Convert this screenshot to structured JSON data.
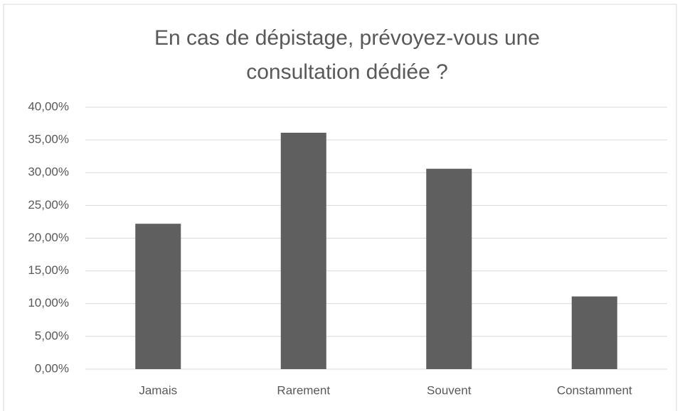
{
  "chart_data": {
    "type": "bar",
    "title": "En cas de dépistage, prévoyez-vous une consultation dédiée ?",
    "categories": [
      "Jamais",
      "Rarement",
      "Souvent",
      "Constamment"
    ],
    "values": [
      22.2,
      36.1,
      30.6,
      11.1
    ],
    "color": "#5f5f5f",
    "ylim": [
      0,
      40
    ],
    "yticks": [
      {
        "value": 0,
        "label": "0,00%"
      },
      {
        "value": 5,
        "label": "5,00%"
      },
      {
        "value": 10,
        "label": "10,00%"
      },
      {
        "value": 15,
        "label": "15,00%"
      },
      {
        "value": 20,
        "label": "20,00%"
      },
      {
        "value": 25,
        "label": "25,00%"
      },
      {
        "value": 30,
        "label": "30,00%"
      },
      {
        "value": 35,
        "label": "35,00%"
      },
      {
        "value": 40,
        "label": "40,00%"
      }
    ],
    "grid": true
  }
}
